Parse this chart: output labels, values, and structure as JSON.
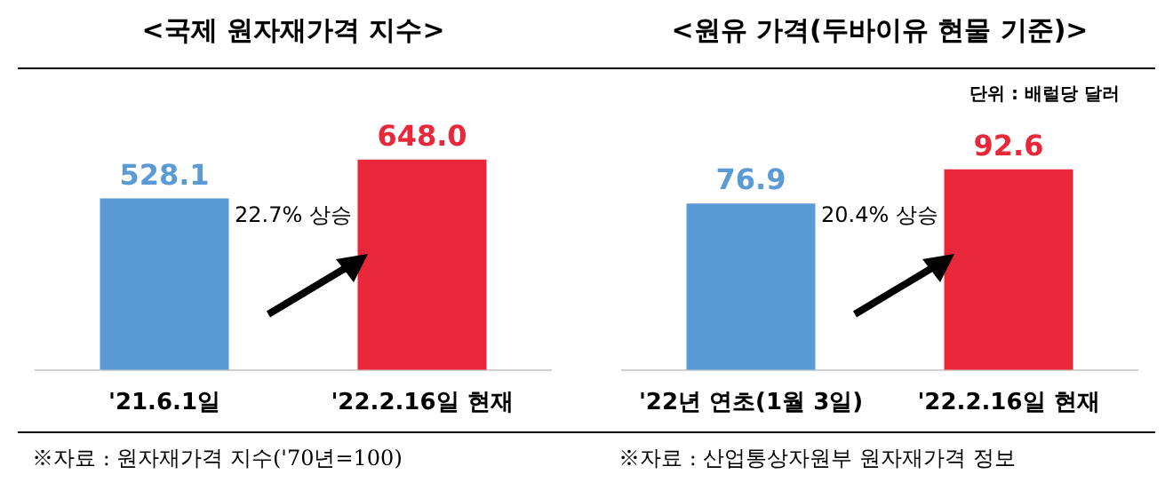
{
  "chart_data": [
    {
      "type": "bar",
      "title": "<국제 원자재가격 지수>",
      "categories": [
        "'21.6.1일",
        "'22.2.16일 현재"
      ],
      "values": [
        528.1,
        648.0
      ],
      "colors": [
        "#5b9bd5",
        "#e8283a"
      ],
      "value_labels": [
        "528.1",
        "648.0"
      ],
      "data_labels": true,
      "annotations": [
        "22.7% 상승",
        "※자료 : 원자재가격 지수('70년=100)"
      ]
    },
    {
      "type": "bar",
      "title": "<원유 가격(두바이유 현물 기준)>",
      "categories": [
        "'22년 연초(1월 3일)",
        "'22.2.16일 현재"
      ],
      "values": [
        76.9,
        92.6
      ],
      "colors": [
        "#5b9bd5",
        "#e8283a"
      ],
      "value_labels": [
        "76.9",
        "92.6"
      ],
      "data_labels": true,
      "annotations": [
        "20.4% 상승",
        "단위 : 배럴당 달러",
        "※자료 : 산업통상자원부 원자재가격 정보"
      ]
    }
  ]
}
